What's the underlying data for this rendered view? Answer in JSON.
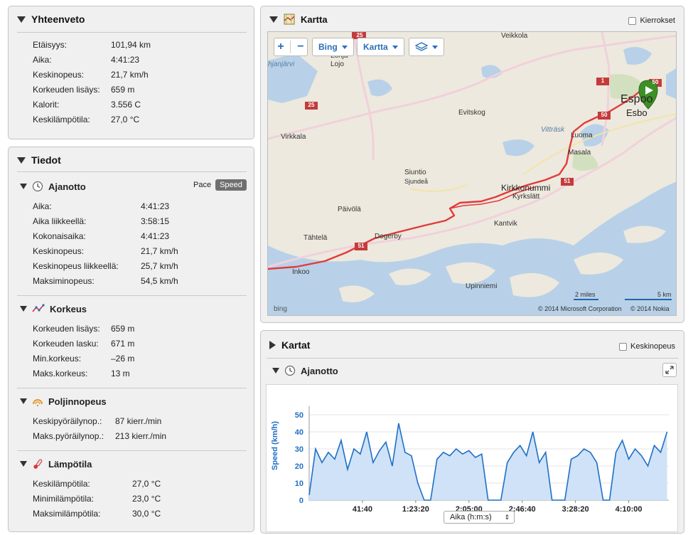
{
  "summary": {
    "title": "Yhteenveto",
    "rows": [
      {
        "label": "Etäisyys:",
        "value": "101,94 km"
      },
      {
        "label": "Aika:",
        "value": "4:41:23"
      },
      {
        "label": "Keskinopeus:",
        "value": "21,7 km/h"
      },
      {
        "label": "Korkeuden lisäys:",
        "value": "659 m"
      },
      {
        "label": "Kalorit:",
        "value": "3.556 C"
      },
      {
        "label": "Keskilämpötila:",
        "value": "27,0 °C"
      }
    ]
  },
  "details": {
    "title": "Tiedot",
    "timing": {
      "title": "Ajanotto",
      "toggle": {
        "pace": "Pace",
        "speed": "Speed",
        "selected": "Speed"
      },
      "rows": [
        {
          "label": "Aika:",
          "value": "4:41:23"
        },
        {
          "label": "Aika liikkeellä:",
          "value": "3:58:15"
        },
        {
          "label": "Kokonaisaika:",
          "value": "4:41:23"
        },
        {
          "label": "Keskinopeus:",
          "value": "21,7 km/h"
        },
        {
          "label": "Keskinopeus liikkeellä:",
          "value": "25,7 km/h"
        },
        {
          "label": "Maksiminopeus:",
          "value": "54,5 km/h"
        }
      ]
    },
    "elevation": {
      "title": "Korkeus",
      "rows": [
        {
          "label": "Korkeuden lisäys:",
          "value": "659 m"
        },
        {
          "label": "Korkeuden lasku:",
          "value": "671 m"
        },
        {
          "label": "Min.korkeus:",
          "value": "–26 m"
        },
        {
          "label": "Maks.korkeus:",
          "value": "13 m"
        }
      ]
    },
    "cadence": {
      "title": "Poljinnopeus",
      "rows": [
        {
          "label": "Keskipyöräilynop.:",
          "value": "87 kierr./min"
        },
        {
          "label": "Maks.pyöräilynop.:",
          "value": "213 kierr./min"
        }
      ]
    },
    "temperature": {
      "title": "Lämpötila",
      "rows": [
        {
          "label": "Keskilämpötila:",
          "value": "27,0 °C"
        },
        {
          "label": "Minimilämpötila:",
          "value": "23,0 °C"
        },
        {
          "label": "Maksimilämpötila:",
          "value": "30,0 °C"
        }
      ]
    }
  },
  "map": {
    "title": "Kartta",
    "laps_label": "Kierrokset",
    "zoom_in": "+",
    "zoom_out": "−",
    "provider": "Bing",
    "view": "Kartta",
    "layers_icon": "layers-icon",
    "places": {
      "veikkola": "Veikkola",
      "lohja": "Lohja",
      "lojo": "Lojo",
      "hjanjarvi": "hjanjärvi",
      "espoo": "Espoo",
      "esbo": "Esbo",
      "evitskog": "Evitskog",
      "vittrask": "Vitträsk",
      "luoma": "Luoma",
      "virkkala": "Virkkala",
      "masala": "Masala",
      "siuntio": "Siuntio",
      "sjundea": "Sjundeå",
      "kirkkonummi": "Kirkkonummi",
      "kyrkslatt": "Kyrkslätt",
      "paivola": "Päivölä",
      "kantvik": "Kantvik",
      "degerby": "Degerby",
      "tahtela": "Tähtelä",
      "inkoo": "Inkoo",
      "upinniemi": "Upinniemi"
    },
    "road_shields": [
      "25",
      "1",
      "50",
      "25",
      "50",
      "51",
      "51"
    ],
    "scale_miles": "2 miles",
    "scale_km": "5 km",
    "bing_logo": "bing",
    "copyright_ms": "© 2014 Microsoft Corporation",
    "copyright_nokia": "© 2014 Nokia",
    "route_color": "#e23a3a"
  },
  "charts": {
    "title": "Kartat",
    "avg_speed_label": "Keskinopeus",
    "sub_title": "Ajanotto",
    "x_axis_select": "Aika (h:m:s)"
  },
  "chart_data": {
    "type": "area",
    "ylabel": "Speed (km/h)",
    "xlabel": "Aika (h:m:s)",
    "ylim": [
      0,
      55
    ],
    "xlim_seconds": [
      0,
      16883
    ],
    "yticks": [
      0,
      10,
      20,
      30,
      40,
      50
    ],
    "xticks": [
      "41:40",
      "1:23:20",
      "2:05:00",
      "2:46:40",
      "3:28:20",
      "4:10:00"
    ],
    "color": "#1f6fc6",
    "fill": "#cfe2f7",
    "series": [
      {
        "x_seconds": [
          0,
          300,
          600,
          900,
          1200,
          1500,
          1800,
          2100,
          2400,
          2700,
          3000,
          3300,
          3600,
          3900,
          4200,
          4500,
          4800,
          5100,
          5400,
          5700,
          6000,
          6300,
          6600,
          6900,
          7200,
          7500,
          7800,
          8100,
          8400,
          8700,
          9000,
          9300,
          9600,
          9900,
          10200,
          10500,
          10800,
          11100,
          11400,
          11700,
          12000,
          12300,
          12600,
          12900,
          13200,
          13500,
          13800,
          14100,
          14400,
          14700,
          15000,
          15300,
          15600,
          15900,
          16200,
          16500,
          16800
        ],
        "values": [
          3,
          30,
          22,
          28,
          24,
          35,
          18,
          30,
          27,
          40,
          22,
          29,
          34,
          20,
          45,
          28,
          26,
          10,
          0,
          0,
          24,
          28,
          26,
          30,
          27,
          29,
          25,
          27,
          0,
          0,
          0,
          22,
          28,
          32,
          26,
          40,
          22,
          28,
          0,
          0,
          0,
          24,
          26,
          30,
          28,
          22,
          0,
          0,
          28,
          35,
          24,
          30,
          26,
          20,
          32,
          28,
          40
        ]
      }
    ]
  }
}
